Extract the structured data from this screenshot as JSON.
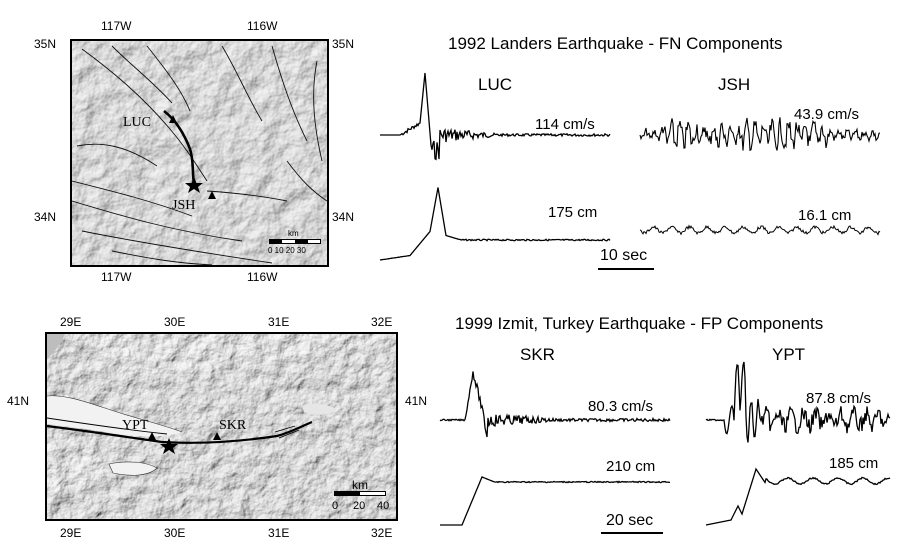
{
  "landers": {
    "title": "1992 Landers Earthquake - FN Components",
    "map": {
      "top_labels": [
        "117W",
        "116W"
      ],
      "bottom_labels": [
        "117W",
        "116W"
      ],
      "left_labels": [
        "35N",
        "34N"
      ],
      "right_labels": [
        "35N",
        "34N"
      ],
      "stations": [
        "LUC",
        "JSH"
      ],
      "scale_unit": "km",
      "scale_ticks": "0  10  20  30"
    },
    "traces": [
      {
        "station": "LUC",
        "velocity": "114 cm/s",
        "displacement": "175 cm"
      },
      {
        "station": "JSH",
        "velocity": "43.9 cm/s",
        "displacement": "16.1 cm"
      }
    ],
    "time_scale": "10 sec"
  },
  "izmit": {
    "title": "1999 Izmit, Turkey Earthquake - FP Components",
    "map": {
      "top_labels": [
        "29E",
        "30E",
        "31E",
        "32E"
      ],
      "bottom_labels": [
        "29E",
        "30E",
        "31E",
        "32E"
      ],
      "left_labels": [
        "41N"
      ],
      "right_labels": [
        "41N"
      ],
      "stations": [
        "YPT",
        "SKR"
      ],
      "scale_unit": "km",
      "scale_ticks": [
        "0",
        "20",
        "40"
      ]
    },
    "traces": [
      {
        "station": "SKR",
        "velocity": "80.3 cm/s",
        "displacement": "210 cm"
      },
      {
        "station": "YPT",
        "velocity": "87.8 cm/s",
        "displacement": "185 cm"
      }
    ],
    "time_scale": "20 sec"
  },
  "colors": {
    "map_shade": "#c4c4c4",
    "sea": "#f2f2f2",
    "ink": "#000000"
  }
}
